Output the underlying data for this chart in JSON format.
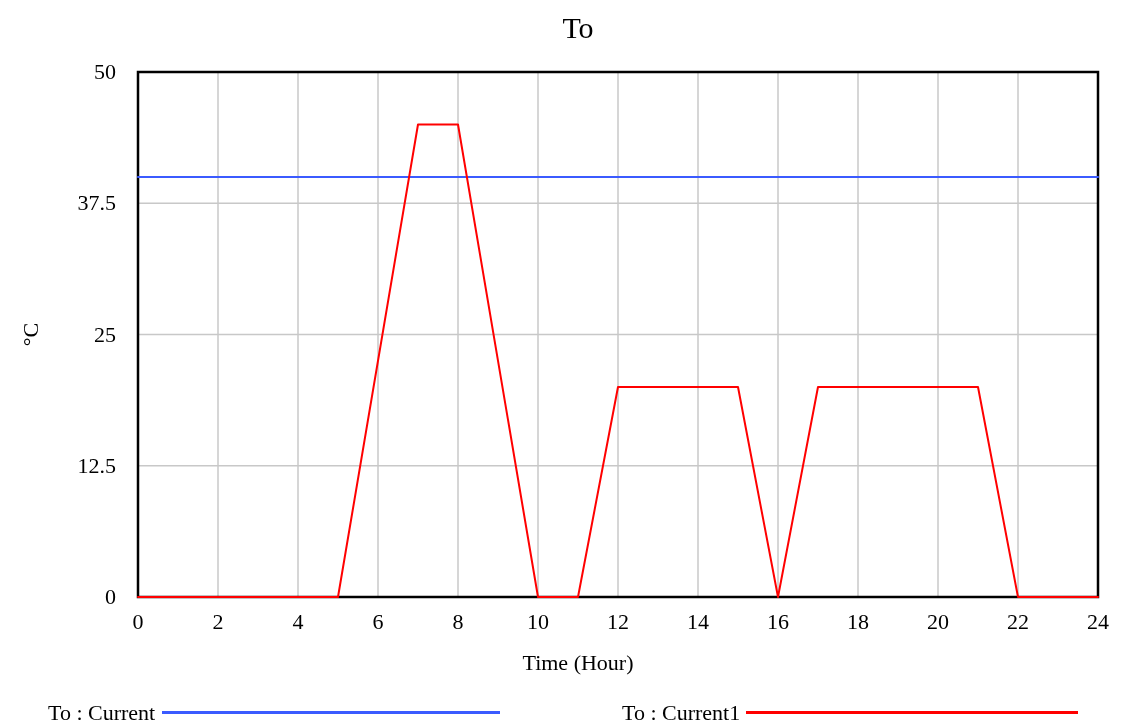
{
  "chart_data": {
    "type": "line",
    "title": "To",
    "xlabel": "Time (Hour)",
    "ylabel": "°C",
    "xlim": [
      0,
      24
    ],
    "xticks": [
      0,
      2,
      4,
      6,
      8,
      10,
      12,
      14,
      16,
      18,
      20,
      22,
      24
    ],
    "ylim": [
      0,
      50
    ],
    "yticks": [
      0,
      12.5,
      25,
      37.5,
      50
    ],
    "grid": true,
    "legend": "bottom",
    "marker": "none",
    "line_style": "solid",
    "series": [
      {
        "name": "To : Current",
        "color": "#3b5bff",
        "x": [
          0,
          24
        ],
        "values": [
          40,
          40
        ]
      },
      {
        "name": "To : Current1",
        "color": "#ff0000",
        "x": [
          0,
          5,
          7,
          8,
          10,
          11,
          12,
          15,
          16,
          17,
          21,
          22,
          24
        ],
        "values": [
          0,
          0,
          45,
          45,
          0,
          0,
          20,
          20,
          0,
          20,
          20,
          0,
          0
        ]
      }
    ]
  }
}
